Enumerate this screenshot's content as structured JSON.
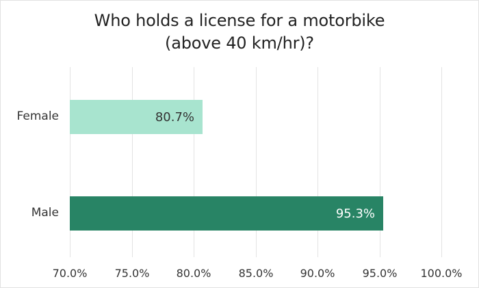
{
  "chart_data": {
    "type": "bar",
    "orientation": "horizontal",
    "title": "Who holds a license for a motorbike (above 40 km/hr)?",
    "title_lines": [
      "Who holds a license for a motorbike",
      "(above 40 km/hr)?"
    ],
    "categories": [
      "Female",
      "Male"
    ],
    "values": [
      80.7,
      95.3
    ],
    "value_labels": [
      "80.7%",
      "95.3%"
    ],
    "bar_colors": [
      "#a8e4cf",
      "#288465"
    ],
    "label_colors": [
      "#333333",
      "#ffffff"
    ],
    "xlabel": "",
    "ylabel": "",
    "xlim": [
      70,
      100
    ],
    "x_ticks": [
      "70.0%",
      "75.0%",
      "80.0%",
      "85.0%",
      "90.0%",
      "95.0%",
      "100.0%"
    ],
    "grid": true,
    "legend": null
  }
}
